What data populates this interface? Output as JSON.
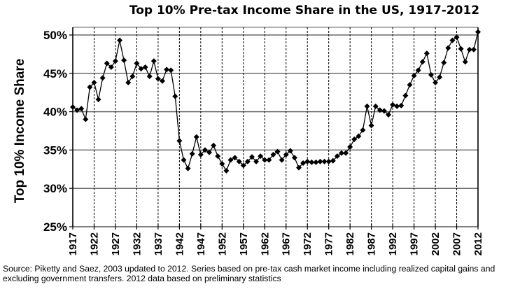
{
  "chart_data": {
    "type": "line",
    "title": "Top 10% Pre-tax Income Share in the US, 1917-2012",
    "xlabel": "",
    "ylabel": "Top 10% Income Share",
    "ylim": [
      25,
      50
    ],
    "xlim": [
      1917,
      2012
    ],
    "y_ticks": [
      "25%",
      "30%",
      "35%",
      "40%",
      "45%",
      "50%"
    ],
    "y_tick_values": [
      25,
      30,
      35,
      40,
      45,
      50
    ],
    "x_ticks": [
      "1917",
      "1922",
      "1927",
      "1932",
      "1937",
      "1942",
      "1947",
      "1952",
      "1957",
      "1962",
      "1967",
      "1972",
      "1977",
      "1982",
      "1987",
      "1992",
      "1997",
      "2002",
      "2007",
      "2012"
    ],
    "grid": true,
    "series": [
      {
        "name": "Top 10% Income Share",
        "color": "#000000",
        "x": [
          1917,
          1918,
          1919,
          1920,
          1921,
          1922,
          1923,
          1924,
          1925,
          1926,
          1927,
          1928,
          1929,
          1930,
          1931,
          1932,
          1933,
          1934,
          1935,
          1936,
          1937,
          1938,
          1939,
          1940,
          1941,
          1942,
          1943,
          1944,
          1945,
          1946,
          1947,
          1948,
          1949,
          1950,
          1951,
          1952,
          1953,
          1954,
          1955,
          1956,
          1957,
          1958,
          1959,
          1960,
          1961,
          1962,
          1963,
          1964,
          1965,
          1966,
          1967,
          1968,
          1969,
          1970,
          1971,
          1972,
          1973,
          1974,
          1975,
          1976,
          1977,
          1978,
          1979,
          1980,
          1981,
          1982,
          1983,
          1984,
          1985,
          1986,
          1987,
          1988,
          1989,
          1990,
          1991,
          1992,
          1993,
          1994,
          1995,
          1996,
          1997,
          1998,
          1999,
          2000,
          2001,
          2002,
          2003,
          2004,
          2005,
          2006,
          2007,
          2008,
          2009,
          2010,
          2011,
          2012
        ],
        "values": [
          40.6,
          40.2,
          40.4,
          39.0,
          43.2,
          43.8,
          41.6,
          44.4,
          46.3,
          45.8,
          46.6,
          49.3,
          46.7,
          43.8,
          44.6,
          46.3,
          45.6,
          45.8,
          44.6,
          46.6,
          44.3,
          44.0,
          45.5,
          45.4,
          42.0,
          36.2,
          33.7,
          32.6,
          34.5,
          36.7,
          34.4,
          35.0,
          34.7,
          35.6,
          34.2,
          33.2,
          32.3,
          33.7,
          34.0,
          33.5,
          33.0,
          33.5,
          34.1,
          33.5,
          34.2,
          33.7,
          33.7,
          34.4,
          34.8,
          33.7,
          34.4,
          34.9,
          34.0,
          32.7,
          33.3,
          33.5,
          33.4,
          33.4,
          33.5,
          33.5,
          33.5,
          33.6,
          34.2,
          34.6,
          34.6,
          35.4,
          36.4,
          36.8,
          37.6,
          40.7,
          38.2,
          40.7,
          40.2,
          40.1,
          39.6,
          40.9,
          40.7,
          40.8,
          42.1,
          43.5,
          44.7,
          45.4,
          46.5,
          47.6,
          44.8,
          43.8,
          44.5,
          46.4,
          48.3,
          49.3,
          49.7,
          48.2,
          46.5,
          48.1,
          48.1,
          50.4
        ]
      }
    ]
  },
  "source_note": "Source: Piketty and Saez, 2003 updated to 2012. Series based on pre-tax cash market income including realized capital gains and excluding government transfers. 2012 data based on preliminary statistics"
}
